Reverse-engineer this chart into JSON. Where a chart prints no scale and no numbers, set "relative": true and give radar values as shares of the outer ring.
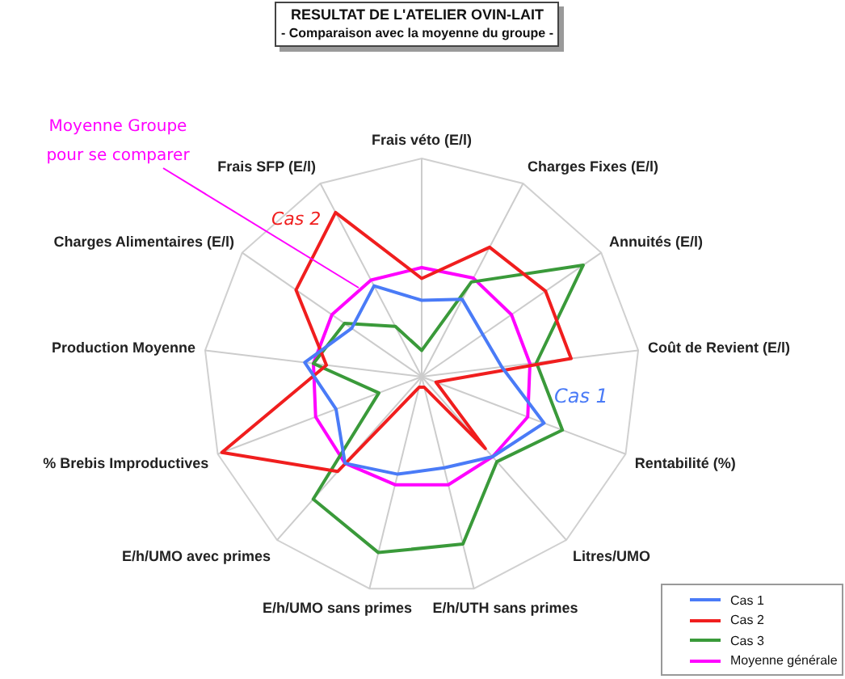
{
  "chart_data": {
    "type": "radar",
    "title": "RESULTAT DE L'ATELIER OVIN-LAIT",
    "subtitle": "- Comparaison avec la moyenne du groupe -",
    "categories": [
      "Frais véto (E/l)",
      "Charges Fixes (E/l)",
      "Annuités (E/l)",
      "Coût de Revient (E/l)",
      "Rentabilité (%)",
      "Litres/UMO",
      "E/h/UTH sans primes",
      "E/h/UMO sans primes",
      "E/h/UMO avec primes",
      "% Brebis Improductives",
      "Production Moyenne",
      "Charges Alimentaires (E/l)",
      "Frais SFP (E/l)"
    ],
    "relative": true,
    "series": [
      {
        "name": "Cas 1",
        "color": "#4a7bf7",
        "values": [
          0.35,
          0.4,
          0.34,
          0.37,
          0.6,
          0.49,
          0.43,
          0.46,
          0.53,
          0.42,
          0.54,
          0.39,
          0.47
        ]
      },
      {
        "name": "Cas 2",
        "color": "#f01e1e",
        "values": [
          0.45,
          0.67,
          0.69,
          0.69,
          0.07,
          0.44,
          0.05,
          0.05,
          0.58,
          0.98,
          0.44,
          0.7,
          0.85
        ]
      },
      {
        "name": "Cas 3",
        "color": "#3a9a3a",
        "values": [
          0.12,
          0.49,
          0.9,
          0.53,
          0.69,
          0.52,
          0.79,
          0.83,
          0.75,
          0.21,
          0.5,
          0.43,
          0.26
        ]
      },
      {
        "name": "Moyenne générale",
        "color": "#ff00ff",
        "values": [
          0.5,
          0.51,
          0.5,
          0.5,
          0.52,
          0.49,
          0.51,
          0.51,
          0.53,
          0.52,
          0.5,
          0.5,
          0.5
        ]
      }
    ],
    "annotations": [
      "Moyenne Groupe pour se comparer",
      "Cas 2",
      "Cas 1"
    ],
    "grid": true,
    "legend": "bottom right",
    "marker": "none"
  }
}
